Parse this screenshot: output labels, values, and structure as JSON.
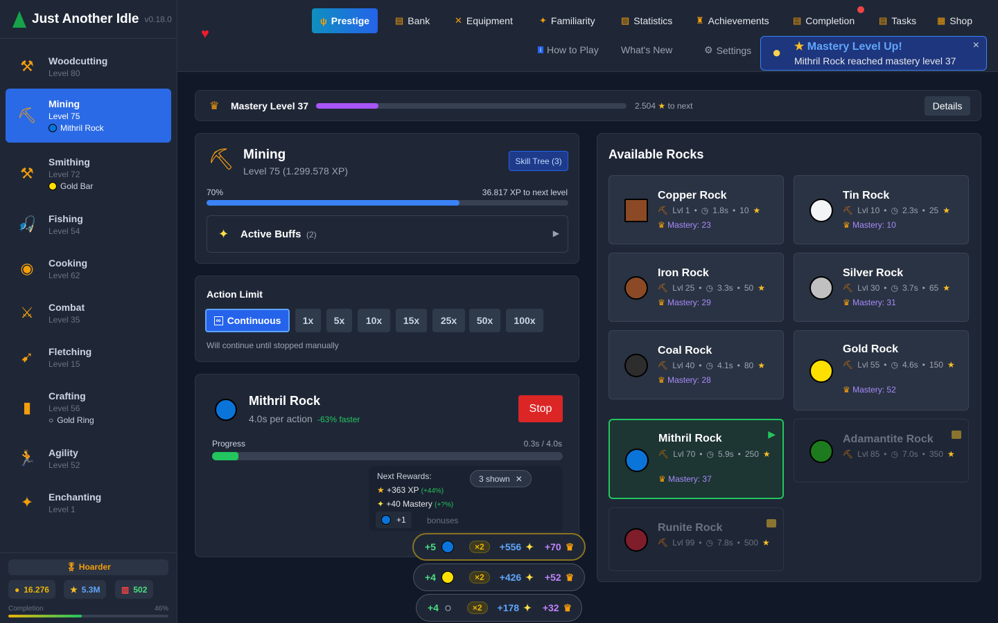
{
  "app": {
    "title": "Just Another Idle",
    "version": "v0.18.0"
  },
  "sidebar": {
    "items": [
      {
        "name": "Woodcutting",
        "level": "Level 80",
        "icon": "axe-icon",
        "glyph": "⚒"
      },
      {
        "name": "Mining",
        "level": "Level 75",
        "icon": "pickaxe-icon",
        "glyph": "⛏",
        "sub": "Mithril Rock",
        "subcolor": "#0a74d9",
        "active": true
      },
      {
        "name": "Smithing",
        "level": "Level 72",
        "icon": "hammer-pick-icon",
        "glyph": "⚒",
        "sub": "Gold Bar",
        "subcolor": "#fde000"
      },
      {
        "name": "Fishing",
        "level": "Level 54",
        "icon": "fishing-icon",
        "glyph": "🎣"
      },
      {
        "name": "Cooking",
        "level": "Level 62",
        "icon": "cooking-icon",
        "glyph": "◉"
      },
      {
        "name": "Combat",
        "level": "Level 35",
        "icon": "swords-icon",
        "glyph": "⚔"
      },
      {
        "name": "Fletching",
        "level": "Level 15",
        "icon": "bow-icon",
        "glyph": "➹"
      },
      {
        "name": "Crafting",
        "level": "Level 56",
        "icon": "thread-icon",
        "glyph": "▮",
        "sub": "Gold Ring",
        "subcolor": "ring"
      },
      {
        "name": "Agility",
        "level": "Level 52",
        "icon": "runner-icon",
        "glyph": "🏃"
      },
      {
        "name": "Enchanting",
        "level": "Level 1",
        "icon": "sparkles-icon",
        "glyph": "✦"
      }
    ],
    "footer": {
      "title": "Hoarder",
      "gold": "16.276",
      "stars": "5.3M",
      "stats": "502",
      "completion_label": "Completion",
      "completion": "46%",
      "completion_value": 46
    }
  },
  "nav": {
    "tabs": [
      {
        "label": "Prestige",
        "icon": "trident-icon",
        "glyph": "ψ"
      },
      {
        "label": "Bank",
        "icon": "bank-icon",
        "glyph": "▤"
      },
      {
        "label": "Equipment",
        "icon": "equipment-icon",
        "glyph": "✕"
      },
      {
        "label": "Familiarity",
        "icon": "sparkle-icon",
        "glyph": "✦"
      },
      {
        "label": "Statistics",
        "icon": "chart-icon",
        "glyph": "▨"
      },
      {
        "label": "Achievements",
        "icon": "trophy-icon",
        "glyph": "♜"
      },
      {
        "label": "Completion",
        "icon": "clipboard-icon",
        "glyph": "▤"
      },
      {
        "label": "Tasks",
        "icon": "clipboard-icon",
        "glyph": "▤"
      },
      {
        "label": "Shop",
        "icon": "shop-icon",
        "glyph": "▦"
      }
    ],
    "secondary": [
      {
        "label": "How to Play"
      },
      {
        "label": "What's New"
      },
      {
        "label": "Settings"
      }
    ]
  },
  "toast": {
    "title": "Mastery Level Up!",
    "message": "Mithril Rock reached mastery level 37"
  },
  "mastery": {
    "label": "Mastery Level 37",
    "progress": 20,
    "to_next": "2.504",
    "to_next_suffix": "to next",
    "details": "Details"
  },
  "skill": {
    "name": "Mining",
    "level": "Level 75 (1.299.578 XP)",
    "skill_tree": "Skill Tree (3)",
    "percent": "70%",
    "progress": 70,
    "to_next": "36.817 XP to next level",
    "buffs_label": "Active Buffs",
    "buffs_count": "(2)"
  },
  "action_limit": {
    "title": "Action Limit",
    "options": [
      "Continuous",
      "1x",
      "5x",
      "10x",
      "15x",
      "25x",
      "50x",
      "100x"
    ],
    "selected": "Continuous",
    "note": "Will continue until stopped manually"
  },
  "current": {
    "name": "Mithril Rock",
    "color": "#0a74d9",
    "per_action": "4.0s per action",
    "faster": "-63% faster",
    "stop": "Stop",
    "progress_label": "Progress",
    "progress_text": "0.3s / 4.0s",
    "progress": 7.5,
    "rewards_title": "Next Rewards:",
    "xp": "+363 XP",
    "xp_bonus": "(+44%)",
    "mastery": "+40 Mastery",
    "mastery_bonus": "(+?%)",
    "item": "+1",
    "bonuses": "bonuses",
    "shown": "3 shown"
  },
  "reward_pills": [
    {
      "qty": "+5",
      "item_color": "#0a74d9",
      "item": "circle",
      "mult": "×2",
      "xp": "+556",
      "mastery": "+70",
      "highlight": true
    },
    {
      "qty": "+4",
      "item_color": "#fde000",
      "item": "circle",
      "mult": "×2",
      "xp": "+426",
      "mastery": "+52"
    },
    {
      "qty": "+4",
      "item": "ring",
      "mult": "×2",
      "xp": "+178",
      "mastery": "+32"
    }
  ],
  "rocks": {
    "title": "Available Rocks",
    "items": [
      {
        "name": "Copper Rock",
        "lvl": "Lvl 1",
        "time": "1.8s",
        "xp": "10",
        "mastery": "Mastery: 23",
        "color": "#8b4a25",
        "shape": "square"
      },
      {
        "name": "Tin Rock",
        "lvl": "Lvl 10",
        "time": "2.3s",
        "xp": "25",
        "mastery": "Mastery: 10",
        "color": "#f3f4f6"
      },
      {
        "name": "Iron Rock",
        "lvl": "Lvl 25",
        "time": "3.3s",
        "xp": "50",
        "mastery": "Mastery: 29",
        "color": "#8b4a25"
      },
      {
        "name": "Silver Rock",
        "lvl": "Lvl 30",
        "time": "3.7s",
        "xp": "65",
        "mastery": "Mastery: 31",
        "color": "#c0c0c0"
      },
      {
        "name": "Coal Rock",
        "lvl": "Lvl 40",
        "time": "4.1s",
        "xp": "80",
        "mastery": "Mastery: 28",
        "color": "#2d2d2d"
      },
      {
        "name": "Gold Rock",
        "lvl": "Lvl 55",
        "time": "4.6s",
        "xp": "150",
        "mastery": "Mastery: 52",
        "color": "#fde000"
      },
      {
        "name": "Mithril Rock",
        "lvl": "Lvl 70",
        "time": "5.9s",
        "xp": "250",
        "mastery": "Mastery: 37",
        "color": "#0a74d9",
        "selected": true
      },
      {
        "name": "Adamantite Rock",
        "lvl": "Lvl 85",
        "time": "7.0s",
        "xp": "350",
        "color": "#1e7a1e",
        "locked": true
      },
      {
        "name": "Runite Rock",
        "lvl": "Lvl 99",
        "time": "7.8s",
        "xp": "500",
        "color": "#7f1d2a",
        "locked": true
      }
    ]
  },
  "colors": {
    "accent": "#2563eb",
    "mastery": "#a855f7",
    "success": "#22c55e",
    "danger": "#dc2626"
  }
}
